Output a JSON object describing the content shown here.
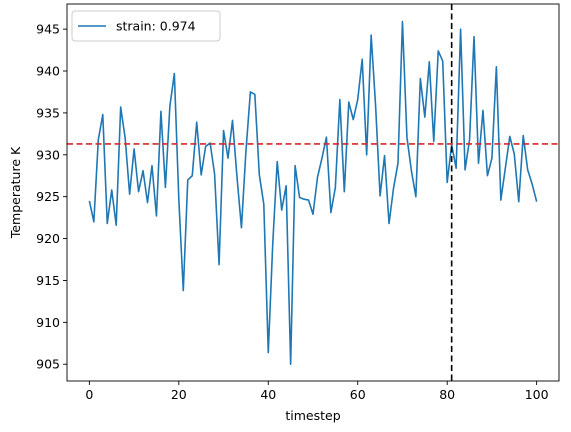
{
  "chart_data": {
    "type": "line",
    "xlabel": "timestep",
    "ylabel": "Temperature K",
    "xlim": [
      -5,
      105
    ],
    "ylim": [
      903,
      948
    ],
    "xticks": [
      0,
      20,
      40,
      60,
      80,
      100
    ],
    "yticks": [
      905,
      910,
      915,
      920,
      925,
      930,
      935,
      940,
      945
    ],
    "grid": false,
    "legend_position": "top-left",
    "series": [
      {
        "name": "strain: 0.974",
        "color": "#1f77b4",
        "x": [
          0,
          1,
          2,
          3,
          4,
          5,
          6,
          7,
          8,
          9,
          10,
          11,
          12,
          13,
          14,
          15,
          16,
          17,
          18,
          19,
          20,
          21,
          22,
          23,
          24,
          25,
          26,
          27,
          28,
          29,
          30,
          31,
          32,
          33,
          34,
          35,
          36,
          37,
          38,
          39,
          40,
          41,
          42,
          43,
          44,
          45,
          46,
          47,
          48,
          49,
          50,
          51,
          52,
          53,
          54,
          55,
          56,
          57,
          58,
          59,
          60,
          61,
          62,
          63,
          64,
          65,
          66,
          67,
          68,
          69,
          70,
          71,
          72,
          73,
          74,
          75,
          76,
          77,
          78,
          79,
          80,
          81,
          82,
          83,
          84,
          85,
          86,
          87,
          88,
          89,
          90,
          91,
          92,
          93,
          94,
          95,
          96,
          97,
          98,
          99,
          100
        ],
        "y": [
          924.5,
          922.0,
          931.8,
          934.8,
          921.8,
          925.8,
          921.6,
          935.7,
          932.0,
          925.3,
          930.7,
          925.6,
          928.1,
          924.3,
          928.7,
          922.7,
          935.2,
          926.1,
          935.8,
          939.7,
          924.7,
          913.8,
          927.0,
          927.5,
          933.9,
          927.6,
          931.0,
          931.4,
          927.7,
          916.9,
          932.9,
          929.6,
          934.1,
          927.4,
          921.3,
          930.4,
          937.5,
          937.2,
          927.6,
          924.1,
          906.4,
          919.4,
          929.2,
          923.4,
          926.3,
          905.0,
          928.7,
          924.9,
          924.7,
          924.6,
          922.9,
          927.3,
          929.6,
          932.1,
          923.1,
          926.1,
          936.6,
          925.6,
          936.3,
          934.2,
          936.6,
          941.4,
          930.0,
          944.3,
          935.8,
          925.1,
          929.9,
          921.8,
          926.0,
          929.0,
          945.9,
          932.1,
          928.1,
          925.0,
          939.1,
          934.5,
          941.1,
          931.6,
          942.4,
          941.2,
          926.7,
          931.2,
          928.4,
          945.0,
          928.2,
          931.8,
          944.1,
          929.0,
          935.3,
          927.5,
          929.6,
          940.5,
          924.6,
          928.4,
          932.2,
          930.1,
          924.4,
          932.3,
          928.2,
          926.5,
          924.4
        ]
      }
    ],
    "reference_lines": [
      {
        "orientation": "horizontal",
        "value": 931.3,
        "color": "#d62728",
        "style": "dashed"
      },
      {
        "orientation": "vertical",
        "value": 81,
        "color": "#000000",
        "style": "dashed"
      }
    ]
  }
}
